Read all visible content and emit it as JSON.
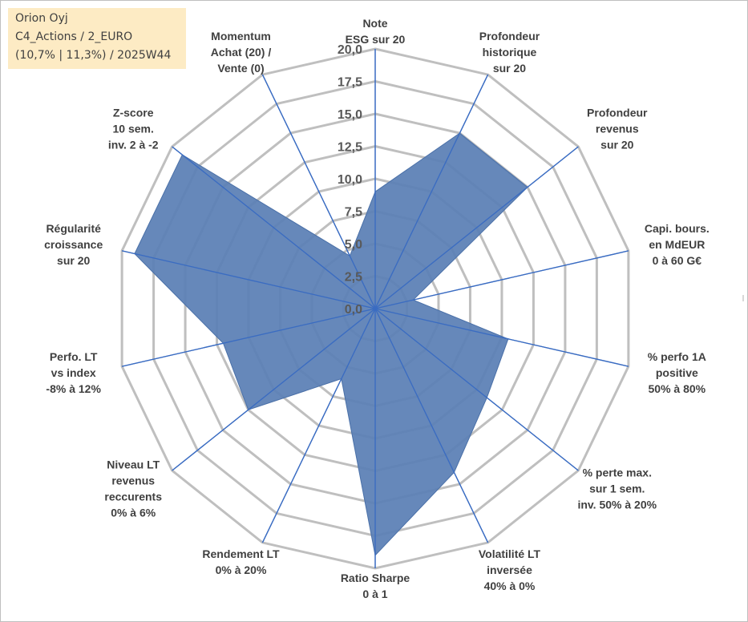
{
  "info": {
    "company": "Orion Oyj",
    "category": "C4_Actions / 2_EURO",
    "stats": "(10,7% | 11,3%) / 2025W44"
  },
  "colors": {
    "grid": "#bfbfbf",
    "spoke": "#3a6cc2",
    "area_fill": "#5a7fb5",
    "area_stroke": "#4a70a8",
    "info_bg": "#fdebc4"
  },
  "chart_data": {
    "type": "radar",
    "title": "",
    "range": [
      0,
      20
    ],
    "grid_step": 2.5,
    "tick_labels": [
      "0,0",
      "2,5",
      "5,0",
      "7,5",
      "10,0",
      "12,5",
      "15,0",
      "17,5",
      "20,0"
    ],
    "axes": [
      {
        "label": [
          "Note",
          "ESG sur 20"
        ]
      },
      {
        "label": [
          "Profondeur",
          "historique",
          "sur 20"
        ]
      },
      {
        "label": [
          "Profondeur",
          "revenus",
          "sur 20"
        ]
      },
      {
        "label": [
          "Capi. bours.",
          "en MdEUR",
          "0 à 60 G€"
        ]
      },
      {
        "label": [
          "% perfo 1A",
          "positive",
          "50% à 80%"
        ]
      },
      {
        "label": [
          "% perte max.",
          "sur 1 sem.",
          "inv. 50% à 20%"
        ]
      },
      {
        "label": [
          "Volatilité LT",
          "inversée",
          "40% à 0%"
        ]
      },
      {
        "label": [
          "Ratio Sharpe",
          "0 à 1"
        ]
      },
      {
        "label": [
          "Rendement LT",
          "0% à 20%"
        ]
      },
      {
        "label": [
          "Niveau LT",
          "revenus",
          "reccurents",
          "0% à 6%"
        ]
      },
      {
        "label": [
          "Perfo. LT",
          "vs index",
          "-8% à 12%"
        ]
      },
      {
        "label": [
          "Régularité",
          "croissance",
          "sur 20"
        ]
      },
      {
        "label": [
          "Z-score",
          "10 sem.",
          "inv. 2 à -2"
        ]
      },
      {
        "label": [
          "Momentum",
          "Achat (20) /",
          "Vente (0)"
        ]
      }
    ],
    "series": [
      {
        "name": "Orion Oyj",
        "values": [
          9.0,
          15.0,
          15.0,
          3.0,
          10.5,
          11.0,
          14.0,
          19.0,
          6.0,
          12.5,
          12.0,
          19.0,
          19.0,
          4.5
        ]
      }
    ]
  }
}
